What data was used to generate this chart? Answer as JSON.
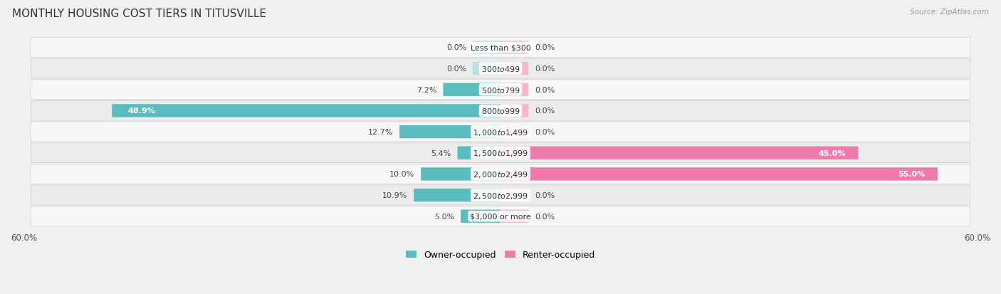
{
  "title": "MONTHLY HOUSING COST TIERS IN TITUSVILLE",
  "source": "Source: ZipAtlas.com",
  "categories": [
    "Less than $300",
    "$300 to $499",
    "$500 to $799",
    "$800 to $999",
    "$1,000 to $1,499",
    "$1,500 to $1,999",
    "$2,000 to $2,499",
    "$2,500 to $2,999",
    "$3,000 or more"
  ],
  "owner_values": [
    0.0,
    0.0,
    7.2,
    48.9,
    12.7,
    5.4,
    10.0,
    10.9,
    5.0
  ],
  "renter_values": [
    0.0,
    0.0,
    0.0,
    0.0,
    0.0,
    45.0,
    55.0,
    0.0,
    0.0
  ],
  "owner_color": "#5bbcbf",
  "renter_color": "#f07aaa",
  "renter_light_color": "#f5b8cc",
  "axis_limit": 60.0,
  "background_color": "#f0f0f0",
  "row_color_odd": "#f7f7f7",
  "row_color_even": "#ececec",
  "title_fontsize": 11,
  "label_fontsize": 8,
  "category_fontsize": 8,
  "legend_fontsize": 9,
  "source_fontsize": 7.5,
  "bar_height": 0.58,
  "stub_value": 3.5,
  "large_threshold": 20.0
}
